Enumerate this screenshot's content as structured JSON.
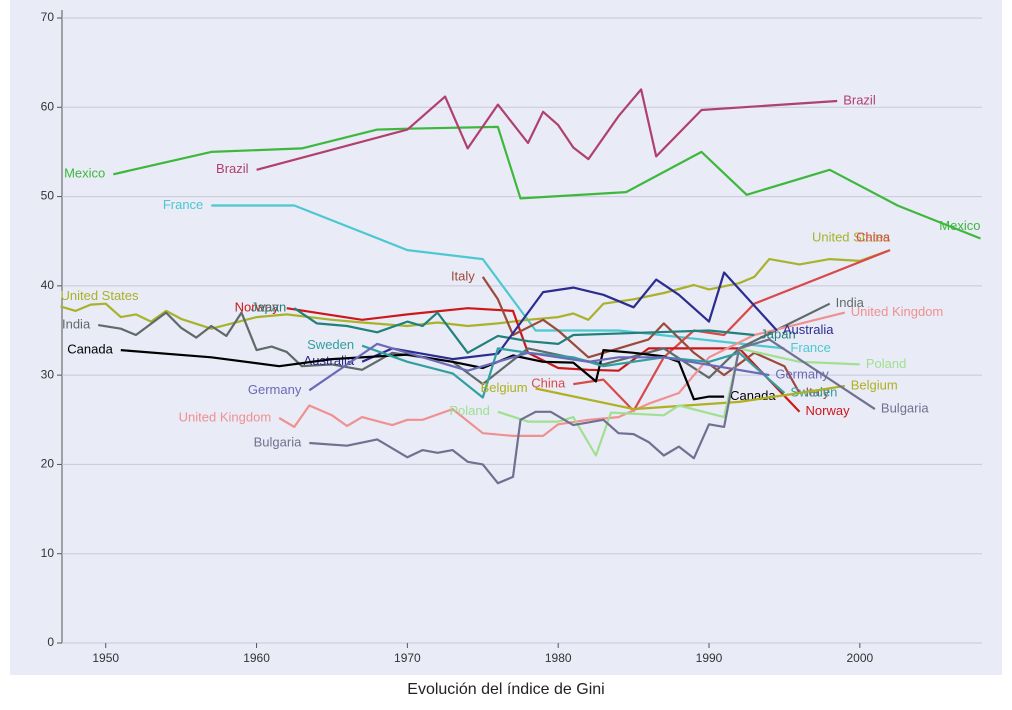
{
  "chart_data": {
    "type": "line",
    "title": "Evolución del índice de Gini",
    "xlim": [
      1947.1,
      2008.1
    ],
    "ylim": [
      0,
      70
    ],
    "xticks": [
      1950,
      1960,
      1970,
      1980,
      1990,
      2000
    ],
    "yticks": [
      0,
      10,
      20,
      30,
      40,
      50,
      60,
      70
    ],
    "grid": true,
    "series": [
      {
        "name": "Mexico",
        "color": "#3db83d",
        "x": [
          1950.5,
          1957,
          1963,
          1968,
          1970,
          1976,
          1977.5,
          1984.5,
          1989.5,
          1992.5,
          1998,
          2002.5,
          2008
        ],
        "values": [
          52.5,
          55,
          55.4,
          57.5,
          57.6,
          57.8,
          49.8,
          50.5,
          55,
          50.2,
          53,
          49,
          45.3
        ]
      },
      {
        "name": "Brazil",
        "color": "#b0406e",
        "x": [
          1960,
          1970,
          1972.5,
          1974,
          1976,
          1978,
          1979,
          1980,
          1981,
          1982,
          1984,
          1985.5,
          1986.5,
          1989.5,
          1998.5
        ],
        "values": [
          53,
          57.5,
          61.2,
          55.4,
          60.3,
          56,
          59.5,
          58,
          55.5,
          54.2,
          59,
          62,
          54.5,
          59.7,
          60.7
        ]
      },
      {
        "name": "France",
        "color": "#4cc8d0",
        "x": [
          1957,
          1962.5,
          1970,
          1975,
          1978.5,
          1984,
          1995
        ],
        "values": [
          49,
          49,
          44,
          43,
          35,
          35,
          33
        ]
      },
      {
        "name": "United States",
        "color": "#a8b22a",
        "x": [
          1947,
          1948,
          1949,
          1950,
          1951,
          1952,
          1953,
          1954,
          1955,
          1957,
          1960,
          1962,
          1965,
          1967,
          1970,
          1972,
          1974,
          1976,
          1978,
          1980,
          1981,
          1982,
          1983,
          1985,
          1987,
          1989,
          1990,
          1992,
          1993,
          1994,
          1996,
          1998,
          2000,
          2002
        ],
        "values": [
          37.7,
          37.2,
          37.9,
          38,
          36.5,
          36.8,
          36,
          37.2,
          36.3,
          35.2,
          36.5,
          36.8,
          36.2,
          35.9,
          35.5,
          35.9,
          35.5,
          35.8,
          36.2,
          36.5,
          36.9,
          36.2,
          38,
          38.5,
          39.2,
          40.1,
          39.6,
          40.3,
          41,
          43,
          42.4,
          43,
          42.8,
          44
        ]
      },
      {
        "name": "China",
        "color": "#d84a4a",
        "x": [
          1981,
          1983,
          1985,
          1987,
          1989,
          1991,
          1993,
          2002
        ],
        "values": [
          29,
          29.5,
          26,
          32,
          35,
          34.5,
          38,
          44
        ]
      },
      {
        "name": "Norway",
        "color": "#cc1818",
        "x": [
          1962,
          1967,
          1970,
          1974,
          1977,
          1978,
          1980,
          1982,
          1984,
          1986,
          1989,
          1992,
          1996
        ],
        "values": [
          37.5,
          36.2,
          36.8,
          37.5,
          37.2,
          32.5,
          30.8,
          30.6,
          30.5,
          33,
          33,
          33,
          25.9
        ]
      },
      {
        "name": "Italy",
        "color": "#9b4a3a",
        "x": [
          1975,
          1976,
          1977,
          1979,
          1980,
          1982,
          1984,
          1986,
          1987,
          1989,
          1991,
          1993,
          1995,
          1996
        ],
        "values": [
          41,
          38.5,
          34.5,
          36.2,
          35,
          32,
          33,
          34,
          35.8,
          32.5,
          30,
          32.5,
          31,
          28
        ]
      },
      {
        "name": "India",
        "color": "#606a6a",
        "x": [
          1949.5,
          1951,
          1952,
          1954,
          1955,
          1956,
          1957,
          1958,
          1959,
          1960,
          1961,
          1962,
          1963,
          1965,
          1967,
          1969,
          1973,
          1975,
          1978,
          1983,
          1987,
          1990,
          1992,
          1998
        ],
        "values": [
          35.6,
          35.2,
          34.5,
          37,
          35.3,
          34.2,
          35.5,
          34.4,
          37,
          32.8,
          33.2,
          32.6,
          31,
          31.2,
          30.6,
          32.5,
          31.5,
          29,
          33,
          31.2,
          33,
          29.7,
          33,
          38
        ]
      },
      {
        "name": "United Kingdom",
        "color": "#f09090",
        "x": [
          1961.5,
          1962.5,
          1963.5,
          1965,
          1966,
          1967,
          1969,
          1970,
          1971,
          1973,
          1975,
          1977,
          1979,
          1980,
          1982,
          1984,
          1986,
          1988,
          1990,
          1993,
          1999
        ],
        "values": [
          25.2,
          24.2,
          26.6,
          25.5,
          24.3,
          25.3,
          24.4,
          25,
          25,
          26.2,
          23.5,
          23.2,
          23.2,
          24.5,
          25,
          25.3,
          26.8,
          28,
          32,
          34.5,
          37
        ]
      },
      {
        "name": "Japan",
        "color": "#20807a",
        "x": [
          1962.5,
          1964,
          1966,
          1968,
          1970,
          1971,
          1972,
          1974,
          1976,
          1978,
          1980,
          1981,
          1990,
          1993
        ],
        "values": [
          37.5,
          35.8,
          35.5,
          34.8,
          36,
          35.5,
          37,
          32.5,
          34.4,
          33.8,
          33.5,
          34.5,
          35,
          34.5
        ]
      },
      {
        "name": "Australia",
        "color": "#2c2c90",
        "x": [
          1967,
          1969,
          1973,
          1976,
          1979,
          1981,
          1983,
          1985,
          1986.5,
          1988,
          1990,
          1991,
          1994.5
        ],
        "values": [
          31.5,
          33,
          31.8,
          32.4,
          39.3,
          39.8,
          39,
          37.6,
          40.7,
          39,
          36,
          41.5,
          35
        ]
      },
      {
        "name": "Canada",
        "color": "#000000",
        "x": [
          1951,
          1957,
          1961.5,
          1965,
          1970,
          1973,
          1975,
          1977,
          1979,
          1981,
          1982.5,
          1983,
          1985,
          1987,
          1988,
          1989,
          1990,
          1991
        ],
        "values": [
          32.8,
          32,
          31,
          31.8,
          32.3,
          31.5,
          30.8,
          32.2,
          31.5,
          31.4,
          29.3,
          32.8,
          32.5,
          32.1,
          31.5,
          27.3,
          27.6,
          27.6
        ]
      },
      {
        "name": "Sweden",
        "color": "#30a0a0",
        "x": [
          1967,
          1970,
          1973,
          1975,
          1976,
          1978,
          1981,
          1983,
          1987,
          1990,
          1992,
          1995
        ],
        "values": [
          33.3,
          31.5,
          30.2,
          27.5,
          33,
          32.5,
          32,
          31,
          32,
          31.5,
          32.5,
          28
        ]
      },
      {
        "name": "Germany",
        "color": "#6a6ab8",
        "x": [
          1963.5,
          1968,
          1970,
          1974,
          1978,
          1982,
          1984,
          1987,
          1994
        ],
        "values": [
          28.3,
          33.5,
          32.5,
          30.5,
          32.5,
          31.5,
          32,
          32,
          30
        ]
      },
      {
        "name": "Belgium",
        "color": "#b0b020",
        "x": [
          1978.5,
          1985,
          1992,
          1996,
          1999
        ],
        "values": [
          28.5,
          26.2,
          27,
          28,
          28.8
        ]
      },
      {
        "name": "Poland",
        "color": "#a0e090",
        "x": [
          1976,
          1978,
          1980,
          1981,
          1982.5,
          1983.5,
          1987,
          1988,
          1991,
          1992,
          1996,
          2000
        ],
        "values": [
          25.9,
          24.8,
          24.8,
          25.3,
          21,
          25.8,
          25.5,
          26.6,
          25.3,
          33,
          31.5,
          31.2
        ]
      },
      {
        "name": "Bulgaria",
        "color": "#707090",
        "x": [
          1963.5,
          1966,
          1968,
          1970,
          1971,
          1972,
          1973,
          1974,
          1975,
          1976,
          1977,
          1977.5,
          1978.5,
          1979.5,
          1981,
          1983,
          1984,
          1985,
          1986,
          1987,
          1988,
          1989,
          1990,
          1991,
          1992,
          1994,
          2001
        ],
        "values": [
          22.4,
          22.1,
          22.8,
          20.8,
          21.6,
          21.3,
          21.6,
          20.3,
          20,
          17.9,
          18.6,
          25,
          25.9,
          25.9,
          24.4,
          25,
          23.5,
          23.4,
          22.5,
          21,
          22,
          20.7,
          24.5,
          24.2,
          33,
          34,
          26.2
        ]
      }
    ]
  }
}
